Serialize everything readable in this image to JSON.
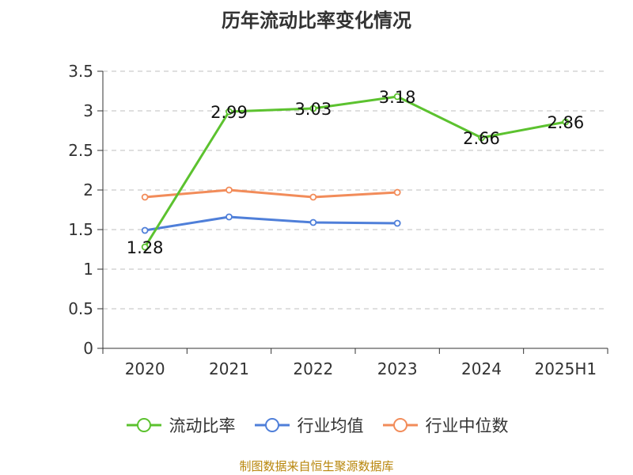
{
  "title": "历年流动比率变化情况",
  "source": "制图数据来自恒生聚源数据库",
  "chart_data": {
    "type": "line",
    "categories": [
      "2020",
      "2021",
      "2022",
      "2023",
      "2024",
      "2025H1"
    ],
    "ylim": [
      0,
      3.5
    ],
    "yticks": [
      "0",
      "0.5",
      "1",
      "1.5",
      "2",
      "2.5",
      "3",
      "3.5"
    ],
    "grid": true,
    "legend_position": "bottom",
    "series": [
      {
        "name": "流动比率",
        "color": "#5cc22f",
        "values": [
          1.28,
          2.99,
          3.03,
          3.18,
          2.66,
          2.86
        ],
        "labels": [
          "1.28",
          "2.99",
          "3.03",
          "3.18",
          "2.66",
          "2.86"
        ]
      },
      {
        "name": "行业均值",
        "color": "#4f7fd9",
        "values": [
          1.49,
          1.66,
          1.59,
          1.58,
          null,
          null
        ]
      },
      {
        "name": "行业中位数",
        "color": "#f28c5a",
        "values": [
          1.91,
          2.0,
          1.91,
          1.97,
          null,
          null
        ]
      }
    ]
  }
}
